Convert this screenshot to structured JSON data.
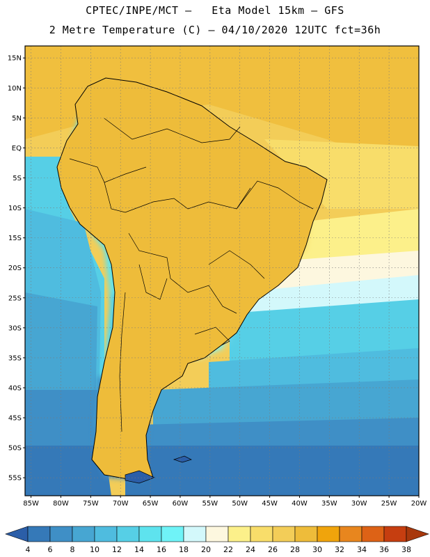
{
  "header": {
    "line1": "CPTEC/INPE/MCT –   Eta Model 15km – GFS",
    "line2": "2 Metre Temperature (C) – 04/10/2020 12UTC fct=36h"
  },
  "map_data": {
    "lon_range": [
      -86,
      -20
    ],
    "lat_range": [
      -58,
      17
    ],
    "lat_ticks": [
      {
        "value": 15,
        "label": "15N"
      },
      {
        "value": 10,
        "label": "10N"
      },
      {
        "value": 5,
        "label": "5N"
      },
      {
        "value": 0,
        "label": "EQ"
      },
      {
        "value": -5,
        "label": "5S"
      },
      {
        "value": -10,
        "label": "10S"
      },
      {
        "value": -15,
        "label": "15S"
      },
      {
        "value": -20,
        "label": "20S"
      },
      {
        "value": -25,
        "label": "25S"
      },
      {
        "value": -30,
        "label": "30S"
      },
      {
        "value": -35,
        "label": "35S"
      },
      {
        "value": -40,
        "label": "40S"
      },
      {
        "value": -45,
        "label": "45S"
      },
      {
        "value": -50,
        "label": "50S"
      },
      {
        "value": -55,
        "label": "55S"
      }
    ],
    "lon_ticks": [
      {
        "value": -85,
        "label": "85W"
      },
      {
        "value": -80,
        "label": "80W"
      },
      {
        "value": -75,
        "label": "75W"
      },
      {
        "value": -70,
        "label": "70W"
      },
      {
        "value": -65,
        "label": "65W"
      },
      {
        "value": -60,
        "label": "60W"
      },
      {
        "value": -55,
        "label": "55W"
      },
      {
        "value": -50,
        "label": "50W"
      },
      {
        "value": -45,
        "label": "45W"
      },
      {
        "value": -40,
        "label": "40W"
      },
      {
        "value": -35,
        "label": "35W"
      },
      {
        "value": -30,
        "label": "30W"
      },
      {
        "value": -25,
        "label": "25W"
      },
      {
        "value": -20,
        "label": "20W"
      }
    ],
    "grid": true,
    "colorbar": {
      "levels": [
        "4",
        "6",
        "8",
        "10",
        "12",
        "14",
        "16",
        "18",
        "20",
        "22",
        "24",
        "26",
        "28",
        "30",
        "32",
        "34",
        "36",
        "38"
      ],
      "colors": [
        "#2b5ea8",
        "#3579b8",
        "#3f8fc6",
        "#47a6d2",
        "#4fbcdf",
        "#56cfe6",
        "#5ee3ee",
        "#6ff3f7",
        "#d3f8fb",
        "#fdf7df",
        "#fcf08a",
        "#f8dd6a",
        "#f3cd58",
        "#eebc3a",
        "#f0a40c",
        "#e8861e",
        "#dd6216",
        "#c63e10",
        "#a8380c"
      ]
    }
  }
}
